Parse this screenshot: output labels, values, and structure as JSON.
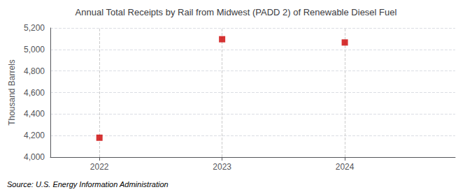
{
  "chart_data": {
    "type": "scatter",
    "title": "Annual Total Receipts by Rail from Midwest (PADD 2) of Renewable Diesel Fuel",
    "ylabel": "Thousand Barrels",
    "source": "Source: U.S. Energy Information Administration",
    "x": [
      2022,
      2023,
      2024
    ],
    "values": [
      4180,
      5095,
      5065
    ],
    "xlim": [
      2021.6,
      2024.9
    ],
    "ylim": [
      4000,
      5200
    ],
    "xticks": [
      2022,
      2023,
      2024
    ],
    "yticks": [
      {
        "value": 4000,
        "label": "4,000"
      },
      {
        "value": 4200,
        "label": "4,200"
      },
      {
        "value": 4400,
        "label": "4,400"
      },
      {
        "value": 4600,
        "label": "4,600"
      },
      {
        "value": 4800,
        "label": "4,800"
      },
      {
        "value": 5000,
        "label": "5,000"
      },
      {
        "value": 5200,
        "label": "5,200"
      }
    ],
    "color": "#cc0000",
    "marker": "square",
    "grid": true
  }
}
